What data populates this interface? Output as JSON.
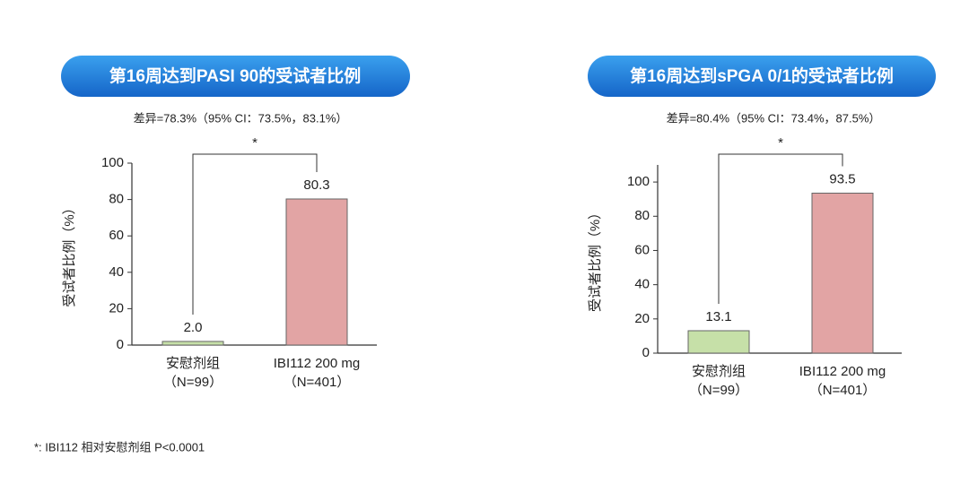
{
  "chart_data": [
    {
      "type": "bar",
      "title": "第16周达到PASI 90的受试者比例",
      "subtitle": "差异=78.3%（95% CI：73.5%，83.1%）",
      "annotation": "*",
      "y_label": "受试者比例（%）",
      "categories": [
        "安慰剂组",
        "IBI112 200 mg"
      ],
      "category_sublabels": [
        "（N=99）",
        "（N=401）"
      ],
      "values": [
        2.0,
        80.3
      ],
      "value_labels": [
        "2.0",
        "80.3"
      ],
      "colors": [
        "#c6e0a8",
        "#e2a4a4"
      ],
      "ylim": [
        0,
        100
      ],
      "yticks": [
        0,
        20,
        40,
        60,
        80,
        100
      ]
    },
    {
      "type": "bar",
      "title": "第16周达到sPGA 0/1的受试者比例",
      "subtitle": "差异=80.4%（95% CI：73.4%，87.5%）",
      "annotation": "*",
      "y_label": "受试者比例（%）",
      "categories": [
        "安慰剂组",
        "IBI112 200 mg"
      ],
      "category_sublabels": [
        "（N=99）",
        "（N=401）"
      ],
      "values": [
        13.1,
        93.5
      ],
      "value_labels": [
        "13.1",
        "93.5"
      ],
      "colors": [
        "#c6e0a8",
        "#e2a4a4"
      ],
      "ylim": [
        0,
        110
      ],
      "yticks": [
        0,
        20,
        40,
        60,
        80,
        100
      ]
    }
  ],
  "footnote": "*: IBI112 相对安慰剂组 P<0.0001"
}
